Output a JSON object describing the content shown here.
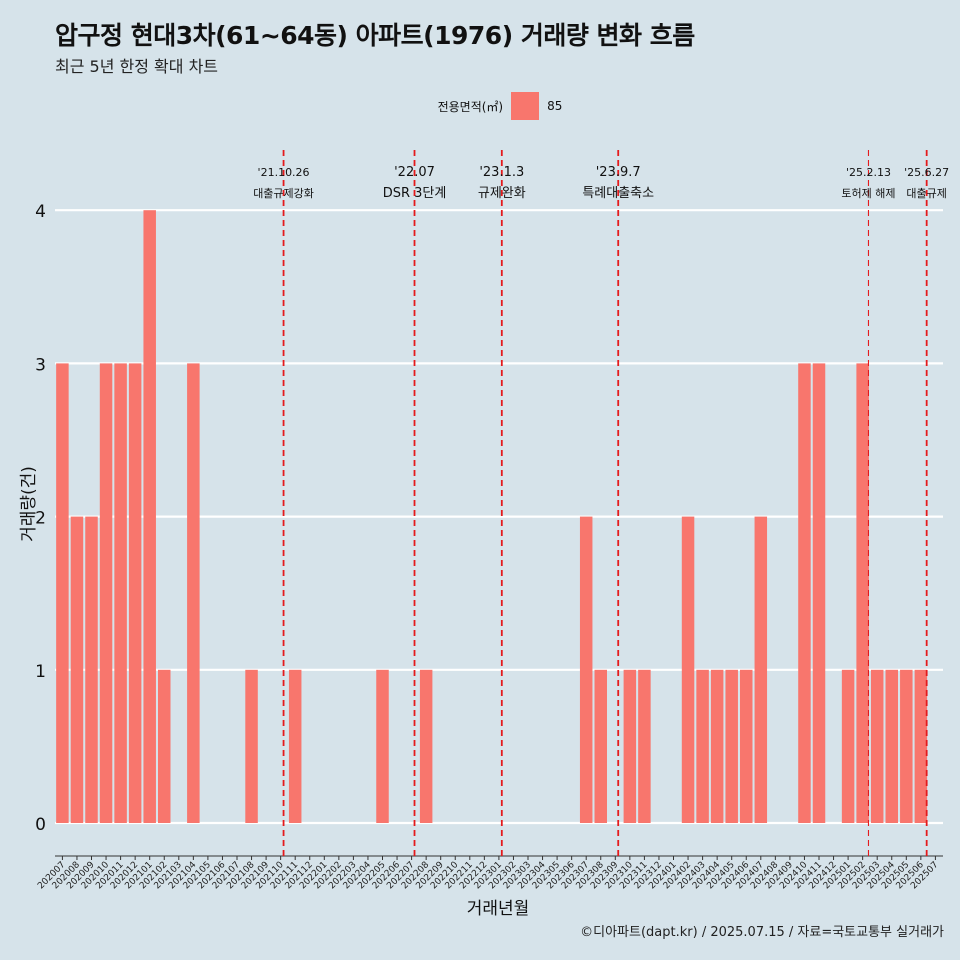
{
  "title": "압구정 현대3차(61~64동) 아파트(1976) 거래량 변화 흐름",
  "subtitle": "최근 5년 한정 확대 차트",
  "caption": "©디아파트(dapt.kr) / 2025.07.15 / 자료=국토교통부 실거래가",
  "legend": {
    "title": "전용면적(㎡)",
    "items": [
      {
        "label": "85",
        "color": "#f8766d"
      }
    ]
  },
  "chart_data": {
    "type": "bar",
    "xlabel": "거래년월",
    "ylabel": "거래량(건)",
    "ylim": [
      0,
      4
    ],
    "yticks": [
      "0",
      "1",
      "2",
      "3",
      "4"
    ],
    "categories": [
      "202007",
      "202008",
      "202009",
      "202010",
      "202011",
      "202012",
      "202101",
      "202102",
      "202103",
      "202104",
      "202105",
      "202106",
      "202107",
      "202108",
      "202109",
      "202110",
      "202111",
      "202112",
      "202201",
      "202202",
      "202203",
      "202204",
      "202205",
      "202206",
      "202207",
      "202208",
      "202209",
      "202210",
      "202211",
      "202212",
      "202301",
      "202302",
      "202303",
      "202304",
      "202305",
      "202306",
      "202307",
      "202308",
      "202309",
      "202310",
      "202311",
      "202312",
      "202401",
      "202402",
      "202403",
      "202404",
      "202405",
      "202406",
      "202407",
      "202408",
      "202409",
      "202410",
      "202411",
      "202412",
      "202501",
      "202502",
      "202503",
      "202504",
      "202505",
      "202506",
      "202507"
    ],
    "series": [
      {
        "name": "85",
        "color": "#f8766d",
        "values": [
          3,
          2,
          2,
          3,
          3,
          3,
          4,
          1,
          0,
          3,
          0,
          0,
          0,
          1,
          0,
          0,
          1,
          0,
          0,
          0,
          0,
          0,
          1,
          0,
          0,
          1,
          0,
          0,
          0,
          0,
          0,
          0,
          0,
          0,
          0,
          0,
          2,
          1,
          0,
          1,
          1,
          0,
          0,
          2,
          1,
          1,
          1,
          1,
          2,
          0,
          0,
          3,
          3,
          0,
          1,
          3,
          1,
          1,
          1,
          1,
          0
        ]
      }
    ],
    "annotations": [
      {
        "x": 15.2,
        "date": "'21.10.26",
        "label": "대출규제강화"
      },
      {
        "x": 24.2,
        "date": "'22.07",
        "label": "DSR 3단계"
      },
      {
        "x": 30.2,
        "date": "'23.1.3",
        "label": "규제완화"
      },
      {
        "x": 38.2,
        "date": "'23.9.7",
        "label": "특례대출축소"
      },
      {
        "x": 55.4,
        "date": "'25.2.13",
        "label": "토허제 해제"
      },
      {
        "x": 59.4,
        "date": "'25.6.27",
        "label": "대출규제"
      }
    ],
    "grid": true,
    "legend_position": "top"
  }
}
